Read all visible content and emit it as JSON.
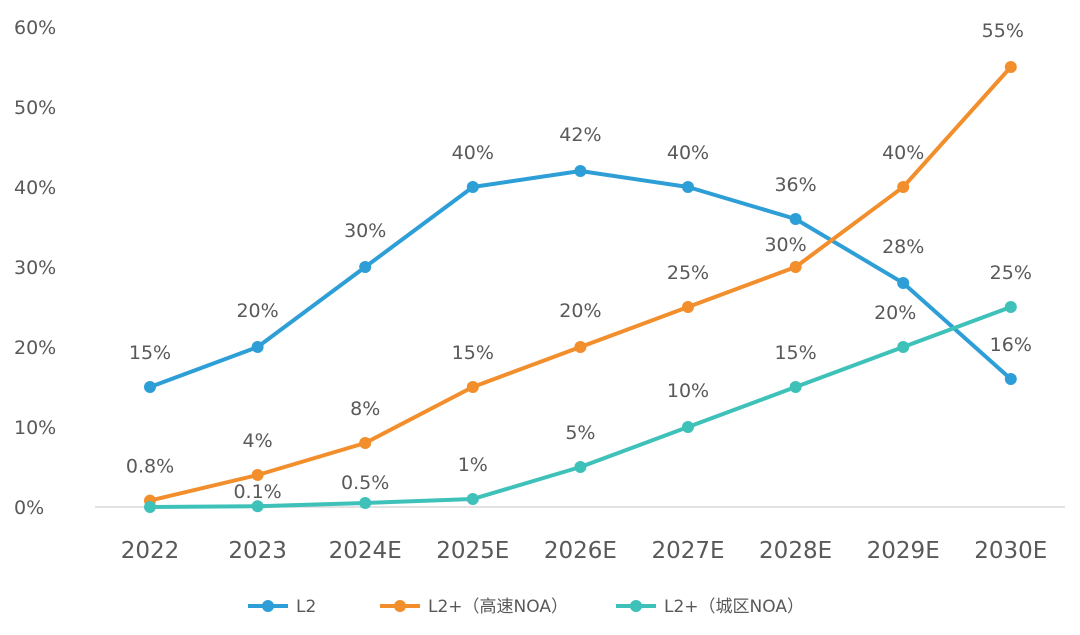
{
  "chart_data": {
    "type": "line",
    "title": "",
    "xlabel": "",
    "ylabel": "",
    "categories": [
      "2022",
      "2023",
      "2024E",
      "2025E",
      "2026E",
      "2027E",
      "2028E",
      "2029E",
      "2030E"
    ],
    "ylim": [
      0,
      60
    ],
    "yticks": [
      0,
      10,
      20,
      30,
      40,
      50,
      60
    ],
    "ytick_labels": [
      "0%",
      "10%",
      "20%",
      "30%",
      "40%",
      "50%",
      "60%"
    ],
    "grid": false,
    "legend_position": "bottom",
    "series": [
      {
        "name": "L2",
        "color": "#2E9FD6",
        "values": [
          15,
          20,
          30,
          40,
          42,
          40,
          36,
          28,
          16
        ],
        "labels": [
          "15%",
          "20%",
          "30%",
          "40%",
          "42%",
          "40%",
          "36%",
          "28%",
          "16%"
        ]
      },
      {
        "name": "L2+（高速NOA）",
        "color": "#F28E2B",
        "values": [
          0.8,
          4,
          8,
          15,
          20,
          25,
          30,
          40,
          55
        ],
        "labels": [
          "0.8%",
          "4%",
          "8%",
          "15%",
          "20%",
          "25%",
          "30%",
          "40%",
          "55%"
        ]
      },
      {
        "name": "L2+（城区NOA）",
        "color": "#3EC1B9",
        "values": [
          0,
          0.1,
          0.5,
          1,
          5,
          10,
          15,
          20,
          25
        ],
        "labels": [
          "",
          "0.1%",
          "0.5%",
          "1%",
          "5%",
          "10%",
          "15%",
          "20%",
          "25%"
        ]
      }
    ]
  }
}
